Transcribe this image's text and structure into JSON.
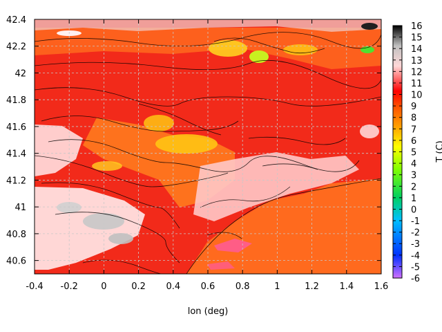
{
  "chart_data": {
    "type": "heatmap",
    "xlabel": "lon (deg)",
    "ylabel": "",
    "colorbar_label": "T (C)",
    "xlim": [
      -0.4,
      1.6
    ],
    "ylim": [
      40.5,
      42.4
    ],
    "x_ticks": [
      "-0.4",
      "-0.2",
      "0",
      "0.2",
      "0.4",
      "0.6",
      "0.8",
      "1",
      "1.2",
      "1.4",
      "1.6"
    ],
    "y_ticks": [
      "40.6",
      "40.8",
      "41",
      "41.2",
      "41.4",
      "41.6",
      "41.8",
      "42",
      "42.2",
      "42.4"
    ],
    "colorbar_range": [
      -6,
      16
    ],
    "colorbar_ticks": [
      "-6",
      "-5",
      "-4",
      "-3",
      "-2",
      "-1",
      "0",
      "1",
      "2",
      "3",
      "4",
      "5",
      "6",
      "7",
      "8",
      "9",
      "10",
      "11",
      "12",
      "13",
      "14",
      "15",
      "16"
    ],
    "colormap": [
      "#d070ff",
      "#0030ff",
      "#00c0ff",
      "#00d060",
      "#80ff00",
      "#ffff00",
      "#ffa000",
      "#ff5000",
      "#ff0000",
      "#ffd8d8",
      "#c0c0c0",
      "#000000"
    ],
    "grid": true,
    "contours": true
  }
}
